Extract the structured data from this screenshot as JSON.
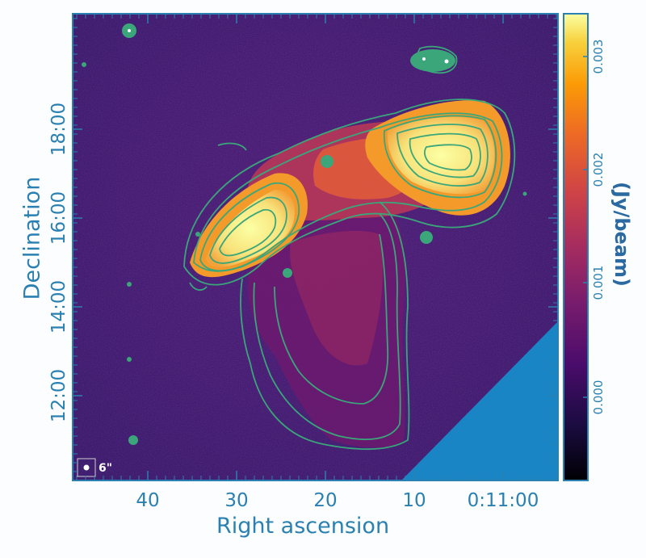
{
  "axes": {
    "xlabel": "Right ascension",
    "ylabel": "Declination",
    "x_ticks": [
      "40",
      "30",
      "20",
      "10",
      "0:11:00"
    ],
    "y_ticks": [
      "18:00",
      "16:00",
      "14:00",
      "12:00"
    ]
  },
  "colorbar": {
    "label": "(Jy/beam)",
    "ticks": [
      "0.003",
      "0.002",
      "0.001",
      "0.000"
    ]
  },
  "beam": {
    "label": "6\""
  },
  "colors": {
    "background": "#3b0f70",
    "contour": "#3aa67a",
    "masked_region": "#1a85c4",
    "axis_text": "#2a80b0"
  }
}
